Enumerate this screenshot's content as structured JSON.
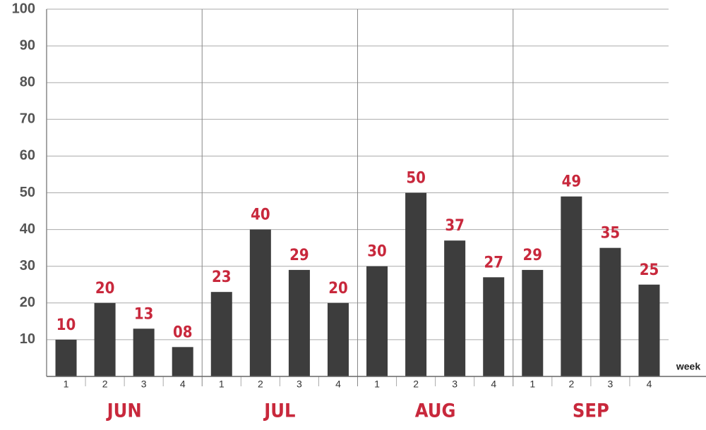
{
  "chart_data": {
    "type": "bar",
    "categories": [
      "1",
      "2",
      "3",
      "4",
      "1",
      "2",
      "3",
      "4",
      "1",
      "2",
      "3",
      "4",
      "1",
      "2",
      "3",
      "4"
    ],
    "groups": [
      "JUN",
      "JUL",
      "AUG",
      "SEP"
    ],
    "values": [
      10,
      20,
      13,
      8,
      23,
      40,
      29,
      20,
      30,
      50,
      37,
      27,
      29,
      49,
      35,
      25
    ],
    "value_labels": [
      "10",
      "20",
      "13",
      "08",
      "23",
      "40",
      "29",
      "20",
      "30",
      "50",
      "37",
      "27",
      "29",
      "49",
      "35",
      "25"
    ],
    "color": "#3d3d3d",
    "label_color": "#c8283c",
    "x_label": "week",
    "ylim": [
      0,
      100
    ],
    "yticks": [
      10,
      20,
      30,
      40,
      50,
      60,
      70,
      80,
      90,
      100
    ],
    "grid": true
  }
}
